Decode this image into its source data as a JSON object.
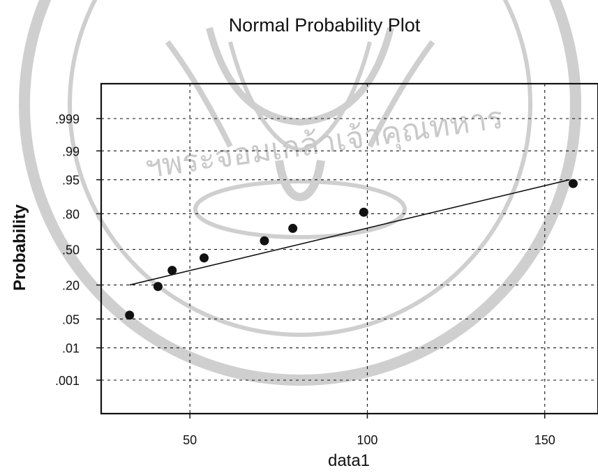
{
  "chart_data": {
    "type": "scatter",
    "title": "Normal Probability Plot",
    "xlabel": "data1",
    "ylabel": "Probability",
    "xlim": [
      25,
      165
    ],
    "x_ticks": [
      50,
      100,
      150
    ],
    "y_scale": "probit",
    "y_ticks": [
      ".001",
      ".01",
      ".05",
      ".20",
      ".50",
      ".80",
      ".95",
      ".99",
      ".999"
    ],
    "y_tick_values": [
      0.001,
      0.01,
      0.05,
      0.2,
      0.5,
      0.8,
      0.95,
      0.99,
      0.999
    ],
    "grid": true,
    "marker_color": "#111111",
    "series": [
      {
        "x": [
          33,
          41,
          45,
          54,
          71,
          79,
          99,
          158
        ],
        "y": [
          0.06,
          0.19,
          0.31,
          0.42,
          0.58,
          0.69,
          0.81,
          0.94
        ]
      }
    ],
    "fit_line": {
      "x": [
        33,
        157
      ],
      "y": [
        0.2,
        0.95
      ]
    }
  },
  "watermark": {
    "text": "ฯพระจอมเกล้าเจ้าคุณทหาร",
    "color": "#c9c9c9"
  }
}
